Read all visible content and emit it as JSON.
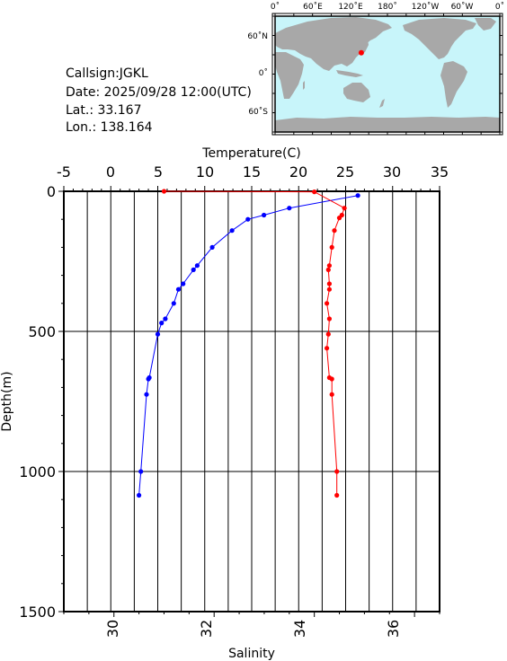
{
  "info": {
    "callsign": "Callsign:JGKL",
    "date": "Date:  2025/09/28 12:00(UTC)",
    "lat": "Lat.:   33.167",
    "lon": "Lon.:  138.164"
  },
  "map": {
    "lon_labels": [
      "0˚",
      "60˚E",
      "120˚E",
      "180˚",
      "120˚W",
      "60˚W",
      "0˚"
    ],
    "lat_labels": [
      "60˚N",
      "0˚",
      "60˚S"
    ],
    "ocean_color": "#c8f5fa",
    "land_color": "#a8a8a8",
    "marker_color": "#ff0000",
    "station": {
      "lat": 33.167,
      "lon": 138.164
    }
  },
  "chart_data": {
    "type": "line",
    "title": "",
    "top_axis": {
      "label": "Temperature(C)",
      "ticks": [
        "-5",
        "0",
        "5",
        "10",
        "15",
        "20",
        "25",
        "30",
        "35"
      ],
      "range": [
        -5,
        35
      ]
    },
    "bottom_axis": {
      "label": "Salinity",
      "ticks": [
        "30",
        "32",
        "34",
        "36"
      ],
      "range": [
        29,
        36.5
      ]
    },
    "y_axis": {
      "label": "Depth(m)",
      "ticks": [
        "0",
        "500",
        "1000",
        "1500"
      ],
      "range": [
        0,
        1500
      ],
      "inverted": true
    },
    "grid": true,
    "series": [
      {
        "color": "#0000ff",
        "variable": "temperature",
        "x": [
          26.3,
          19.0,
          16.3,
          14.6,
          12.9,
          10.8,
          9.2,
          8.8,
          7.7,
          7.2,
          6.7,
          5.8,
          5.4,
          5.0,
          4.1,
          4.0,
          3.8,
          3.2,
          3.0
        ],
        "y": [
          15,
          60,
          85,
          100,
          140,
          200,
          265,
          280,
          330,
          350,
          400,
          455,
          470,
          510,
          665,
          670,
          725,
          1000,
          1085
        ]
      },
      {
        "color": "#ff0000",
        "variable": "salinity",
        "x": [
          31.0,
          34.0,
          34.6,
          34.55,
          34.5,
          34.4,
          34.35,
          34.3,
          34.28,
          34.3,
          34.3,
          34.25,
          34.3,
          34.28,
          34.25,
          34.3,
          34.35,
          34.35,
          34.45,
          34.45
        ],
        "y": [
          0,
          2,
          60,
          85,
          95,
          140,
          200,
          265,
          280,
          330,
          350,
          400,
          455,
          510,
          560,
          665,
          670,
          725,
          1000,
          1085
        ]
      }
    ]
  }
}
